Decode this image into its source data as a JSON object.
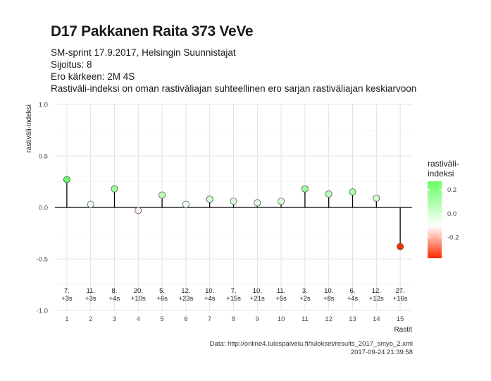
{
  "chart_data": {
    "type": "scatter",
    "title": "D17 Pakkanen Raita 373 VeVe",
    "subtitle_lines": [
      "SM-sprint 17.9.2017, Helsingin Suunnistajat",
      "Sijoitus: 8",
      "Ero kärkeen: 2M 4S",
      "Rastiväli-indeksi on oman rastiväliajan suhteellinen ero sarjan rastiväliajan keskiarvoon"
    ],
    "xlabel": "Rastit",
    "ylabel": "rastiväli-indeksi",
    "xlim": [
      0.5,
      15.5
    ],
    "ylim": [
      -1.0,
      1.0
    ],
    "x_ticks": [
      "1",
      "2",
      "3",
      "4",
      "5",
      "6",
      "7",
      "8",
      "9",
      "10",
      "11",
      "12",
      "13",
      "14",
      "15"
    ],
    "y_ticks": [
      "1.0",
      "0.5",
      "0.0",
      "-0.5",
      "-1.0"
    ],
    "y_tick_values": [
      1.0,
      0.5,
      0.0,
      -0.5,
      -1.0
    ],
    "grid": true,
    "points": [
      {
        "x": 1,
        "y": 0.27,
        "rank": "7.",
        "diff": "+3s"
      },
      {
        "x": 2,
        "y": 0.03,
        "rank": "11.",
        "diff": "+3s"
      },
      {
        "x": 3,
        "y": 0.18,
        "rank": "8.",
        "diff": "+4s"
      },
      {
        "x": 4,
        "y": -0.03,
        "rank": "20.",
        "diff": "+10s"
      },
      {
        "x": 5,
        "y": 0.12,
        "rank": "5.",
        "diff": "+6s"
      },
      {
        "x": 6,
        "y": 0.03,
        "rank": "12.",
        "diff": "+23s"
      },
      {
        "x": 7,
        "y": 0.08,
        "rank": "10.",
        "diff": "+4s"
      },
      {
        "x": 8,
        "y": 0.06,
        "rank": "7.",
        "diff": "+15s"
      },
      {
        "x": 9,
        "y": 0.045,
        "rank": "10.",
        "diff": "+21s"
      },
      {
        "x": 10,
        "y": 0.06,
        "rank": "11.",
        "diff": "+5s"
      },
      {
        "x": 11,
        "y": 0.18,
        "rank": "3.",
        "diff": "+2s"
      },
      {
        "x": 12,
        "y": 0.13,
        "rank": "10.",
        "diff": "+8s"
      },
      {
        "x": 13,
        "y": 0.15,
        "rank": "6.",
        "diff": "+4s"
      },
      {
        "x": 14,
        "y": 0.09,
        "rank": "12.",
        "diff": "+12s"
      },
      {
        "x": 15,
        "y": -0.38,
        "rank": "27.",
        "diff": "+16s"
      }
    ],
    "legend": {
      "title_lines": [
        "rastiväli-",
        "indeksi"
      ],
      "placement": "right",
      "ticks": [
        "0.2",
        "0.0",
        "-0.2"
      ],
      "tick_values": [
        0.2,
        0.0,
        -0.2
      ],
      "range": [
        -0.38,
        0.27
      ],
      "colors": {
        "high": "#66ff66",
        "mid": "#ffffff",
        "low": "#ff2a00"
      }
    }
  },
  "caption": {
    "source": "Data: http://online4.tulospalvelu.fi/tulokset/results_2017_smyo_2.xml",
    "timestamp": "2017-09-24 21:39:58"
  }
}
